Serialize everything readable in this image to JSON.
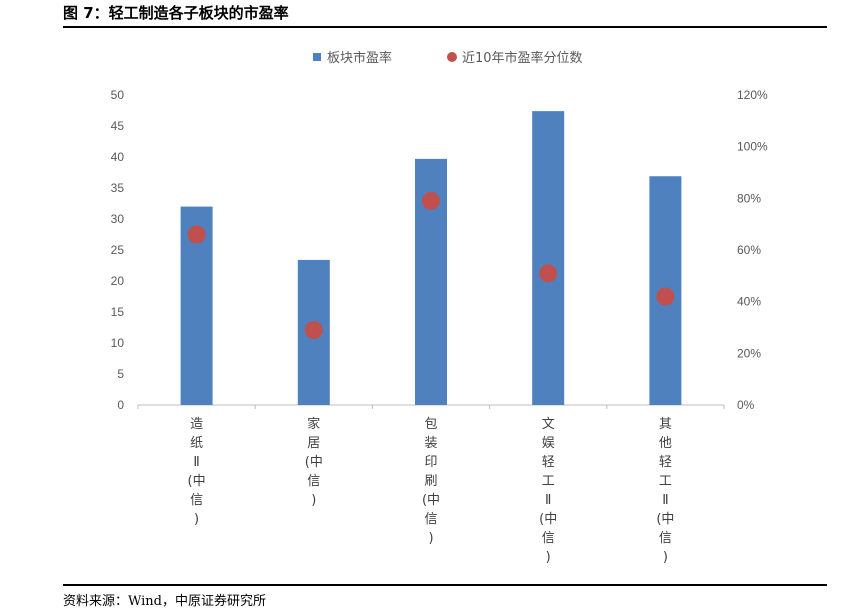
{
  "figure": {
    "title": "图 7：轻工制造各子板块的市盈率",
    "source": "资料来源：Wind，中原证券研究所"
  },
  "colors": {
    "bar": "#4E81BD",
    "dot": "#C0504D",
    "axis": "#BFBFBF",
    "tick_text": "#595959"
  },
  "chart_data": {
    "type": "bar",
    "categories": [
      [
        "造",
        "纸",
        "Ⅱ",
        "(中",
        "信",
        ")"
      ],
      [
        "家",
        "居",
        "(中",
        "信",
        ")"
      ],
      [
        "包",
        "装",
        "印",
        "刷",
        "(中",
        "信",
        ")"
      ],
      [
        "文",
        "娱",
        "轻",
        "工",
        "Ⅱ",
        "(中",
        "信",
        ")"
      ],
      [
        "其",
        "他",
        "轻",
        "工",
        "Ⅱ",
        "(中",
        "信",
        ")"
      ]
    ],
    "series": [
      {
        "name": "板块市盈率",
        "kind": "bar",
        "axis": "left",
        "values": [
          32.0,
          23.4,
          39.7,
          47.4,
          36.9
        ]
      },
      {
        "name": "近10年市盈率分位数",
        "kind": "scatter",
        "axis": "right",
        "values": [
          0.66,
          0.29,
          0.79,
          0.51,
          0.42
        ]
      }
    ],
    "y_left": {
      "min": 0,
      "max": 50,
      "step": 5,
      "ticks": [
        "0",
        "5",
        "10",
        "15",
        "20",
        "25",
        "30",
        "35",
        "40",
        "45",
        "50"
      ]
    },
    "y_right": {
      "min": 0,
      "max": 1.2,
      "step": 0.2,
      "ticks": [
        "0%",
        "20%",
        "40%",
        "60%",
        "80%",
        "100%",
        "120%"
      ]
    },
    "legend": {
      "position": "top-center"
    },
    "grid": false
  }
}
